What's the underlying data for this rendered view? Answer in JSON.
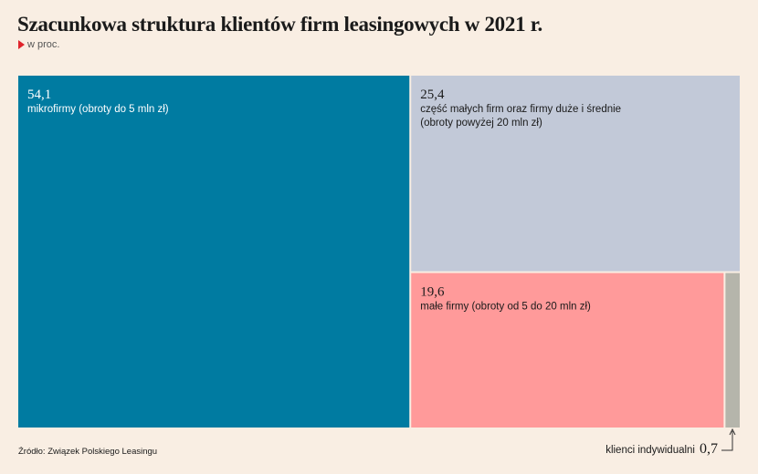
{
  "title": "Szacunkowa struktura klientów firm leasingowych w 2021 r.",
  "subtitle": "w proc.",
  "source": "Źródło: Związek Polskiego Leasingu",
  "chart_data": {
    "type": "treemap",
    "unit": "%",
    "items": [
      {
        "value": 54.1,
        "value_label": "54,1",
        "label": "mikrofirmy (obroty do 5 mln zł)",
        "label_lines": [
          "mikrofirmy (obroty do 5 mln zł)"
        ],
        "color": "#007ba1"
      },
      {
        "value": 25.4,
        "value_label": "25,4",
        "label": "część małych firm oraz firmy duże i średnie (obroty powyżej 20 mln zł)",
        "label_lines": [
          "część małych firm oraz firmy duże i średnie",
          "(obroty powyżej 20 mln zł)"
        ],
        "color": "#c2c9d8"
      },
      {
        "value": 19.6,
        "value_label": "19,6",
        "label": "małe firmy (obroty od 5 do 20 mln zł)",
        "label_lines": [
          "małe firmy (obroty od 5 do 20 mln zł)"
        ],
        "color": "#ff9a9a"
      },
      {
        "value": 0.7,
        "value_label": "0,7",
        "label": "klienci indywidualni",
        "color": "#b5b5ab"
      }
    ]
  }
}
